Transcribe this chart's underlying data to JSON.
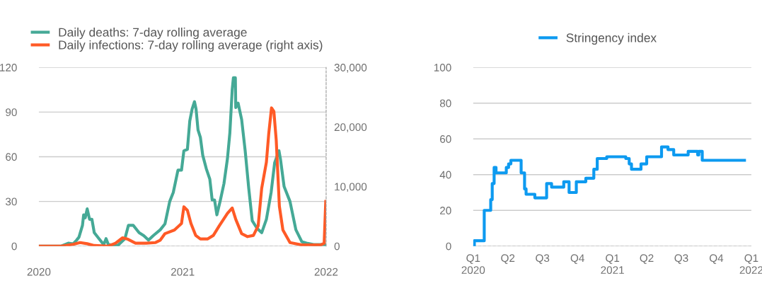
{
  "chart_data": [
    {
      "type": "line",
      "legend": "top left",
      "grid": "y",
      "xlim": [
        "2020-01-01",
        "2022-01-01"
      ],
      "xticks": [
        {
          "value": "2020-01-01",
          "label": "2020"
        },
        {
          "value": "2021-01-01",
          "label": "2021"
        },
        {
          "value": "2022-01-01",
          "label": "2022"
        }
      ],
      "ylim": [
        0,
        120
      ],
      "yticks": [
        0,
        30,
        60,
        90,
        120
      ],
      "y2lim": [
        0,
        30000
      ],
      "y2ticks": [
        0,
        {
          "value": 10000,
          "label": "10,000"
        },
        {
          "value": 20000,
          "label": "20,000"
        },
        {
          "value": 30000,
          "label": "30,000"
        }
      ],
      "ref_lines": [
        {
          "axis": "y",
          "value": 0,
          "label": null,
          "color": "#999999",
          "line_style": "dashed"
        }
      ],
      "series": [
        {
          "name": "Daily deaths: 7-day rolling average",
          "color": "#45a996",
          "x": [
            "2020-01-01",
            "2020-02-27",
            "2020-03-16",
            "2020-03-28",
            "2020-04-06",
            "2020-04-12",
            "2020-04-21",
            "2020-04-24",
            "2020-04-28",
            "2020-05-03",
            "2020-05-09",
            "2020-05-15",
            "2020-05-21",
            "2020-06-02",
            "2020-06-14",
            "2020-06-20",
            "2020-06-26",
            "2020-07-20",
            "2020-08-07",
            "2020-08-16",
            "2020-08-28",
            "2020-09-12",
            "2020-09-24",
            "2020-10-06",
            "2020-10-18",
            "2020-11-05",
            "2020-11-17",
            "2020-11-29",
            "2020-12-08",
            "2020-12-20",
            "2020-12-29",
            "2021-01-04",
            "2021-01-13",
            "2021-01-19",
            "2021-01-25",
            "2021-01-31",
            "2021-02-04",
            "2021-02-09",
            "2021-02-15",
            "2021-02-21",
            "2021-03-02",
            "2021-03-11",
            "2021-03-17",
            "2021-03-23",
            "2021-03-29",
            "2021-04-07",
            "2021-04-16",
            "2021-04-25",
            "2021-05-01",
            "2021-05-07",
            "2021-05-10",
            "2021-05-15",
            "2021-05-16",
            "2021-05-22",
            "2021-05-31",
            "2021-06-09",
            "2021-06-18",
            "2021-06-27",
            "2021-07-09",
            "2021-07-21",
            "2021-08-02",
            "2021-08-14",
            "2021-08-23",
            "2021-09-03",
            "2021-09-07",
            "2021-09-16",
            "2021-10-01",
            "2021-10-16",
            "2021-10-31",
            "2021-11-12",
            "2021-11-30",
            "2021-12-31"
          ],
          "values": [
            0,
            0,
            2,
            1.5,
            4,
            6,
            14,
            21,
            19,
            25,
            18,
            18,
            9,
            5,
            1,
            5,
            1,
            0.5,
            5,
            14,
            14,
            9,
            7,
            4,
            7,
            11,
            15,
            30,
            36,
            51,
            51,
            64,
            65,
            84,
            92,
            97,
            92,
            78,
            73,
            61,
            52,
            45,
            31,
            31,
            21,
            31,
            42,
            59,
            76,
            105,
            113,
            113,
            93,
            96,
            85,
            64,
            39,
            17,
            12,
            9,
            18,
            36,
            56,
            64,
            58,
            40,
            30,
            11,
            3,
            2,
            1,
            1
          ]
        },
        {
          "name": "Daily infections: 7-day rolling average (right axis)",
          "color": "#ff5a26",
          "axis": "y2",
          "x": [
            "2020-01-01",
            "2020-02-27",
            "2020-03-28",
            "2020-04-15",
            "2020-05-03",
            "2020-05-21",
            "2020-06-26",
            "2020-07-14",
            "2020-08-01",
            "2020-08-13",
            "2020-09-03",
            "2020-09-30",
            "2020-10-24",
            "2020-11-05",
            "2020-11-17",
            "2020-12-11",
            "2020-12-29",
            "2021-01-04",
            "2021-01-13",
            "2021-01-22",
            "2021-02-03",
            "2021-02-15",
            "2021-03-05",
            "2021-03-20",
            "2021-04-04",
            "2021-04-25",
            "2021-05-07",
            "2021-05-16",
            "2021-05-31",
            "2021-06-15",
            "2021-06-30",
            "2021-07-12",
            "2021-07-21",
            "2021-08-02",
            "2021-08-08",
            "2021-08-15",
            "2021-08-21",
            "2021-08-27",
            "2021-09-04",
            "2021-09-13",
            "2021-10-01",
            "2021-10-31",
            "2021-12-18",
            "2021-12-27",
            "2021-12-31"
          ],
          "values": [
            0,
            0,
            300,
            600,
            400,
            100,
            0,
            500,
            1400,
            1200,
            500,
            500,
            600,
            1000,
            2100,
            2700,
            3800,
            6600,
            6000,
            3800,
            1800,
            1200,
            1200,
            1800,
            3400,
            5500,
            6400,
            4500,
            2100,
            1600,
            1800,
            3400,
            9700,
            14100,
            18900,
            23200,
            22600,
            17800,
            6700,
            2700,
            600,
            200,
            200,
            500,
            7500
          ]
        }
      ]
    },
    {
      "type": "step",
      "legend": "top",
      "grid": "y",
      "xlim": [
        "2020-01-01",
        "2022-01-01"
      ],
      "xticks": [
        {
          "value": "2020-01-01",
          "label": "Q1"
        },
        {
          "value": "2020-04-01",
          "label": "Q2"
        },
        {
          "value": "2020-07-01",
          "label": "Q3"
        },
        {
          "value": "2020-10-01",
          "label": "Q4"
        },
        {
          "value": "2021-01-01",
          "label": "Q1"
        },
        {
          "value": "2021-04-01",
          "label": "Q2"
        },
        {
          "value": "2021-07-01",
          "label": "Q3"
        },
        {
          "value": "2021-10-01",
          "label": "Q4"
        },
        {
          "value": "2022-01-01",
          "label": "Q1"
        }
      ],
      "x2lim": [
        "2020-01-01",
        "2022-01-01"
      ],
      "x2ticks": [
        {
          "value": "2020-01-01",
          "label": "2020"
        },
        {
          "value": "2021-01-01",
          "label": "2021"
        },
        {
          "value": "2022-01-01",
          "label": "2022"
        }
      ],
      "ylim": [
        0,
        100
      ],
      "yticks": [
        0,
        20,
        40,
        60,
        80,
        100
      ],
      "ref_lines": [
        {
          "axis": "y",
          "value": 0,
          "label": null,
          "color": "#999999",
          "line_style": "dashed"
        }
      ],
      "series": [
        {
          "name": "Stringency index",
          "color": "#0d9af0",
          "x": [
            "2020-01-01",
            "2020-01-04",
            "2020-01-30",
            "2020-02-16",
            "2020-02-20",
            "2020-02-25",
            "2020-03-01",
            "2020-03-28",
            "2020-04-03",
            "2020-04-09",
            "2020-05-06",
            "2020-05-15",
            "2020-05-19",
            "2020-06-11",
            "2020-07-12",
            "2020-07-25",
            "2020-08-26",
            "2020-09-09",
            "2020-09-28",
            "2020-10-23",
            "2020-11-13",
            "2020-11-22",
            "2020-12-17",
            "2021-02-05",
            "2021-02-14",
            "2021-02-20",
            "2021-03-17",
            "2021-04-01",
            "2021-05-10",
            "2021-05-27",
            "2021-06-11",
            "2021-07-19",
            "2021-08-13",
            "2021-08-16",
            "2021-08-25",
            "2021-12-14"
          ],
          "values": [
            0,
            3,
            20,
            26,
            35,
            44,
            41,
            44,
            46,
            48,
            41,
            32,
            29,
            27,
            35,
            33,
            36,
            30,
            36,
            38,
            43,
            49,
            50,
            49,
            46,
            43,
            46,
            50,
            55.5,
            54,
            51,
            53,
            51,
            53,
            48,
            48
          ]
        }
      ]
    }
  ]
}
